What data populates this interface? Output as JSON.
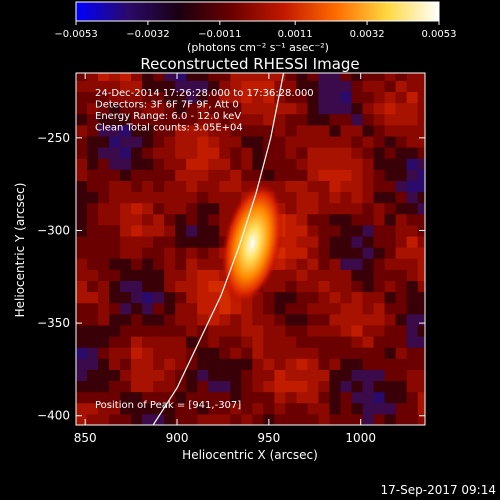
{
  "chart_data": {
    "type": "heatmap",
    "title": "Reconstructed RHESSI Image",
    "xlabel": "Heliocentric X (arcsec)",
    "ylabel": "Heliocentric Y (arcsec)",
    "xlim": [
      845,
      1035
    ],
    "ylim": [
      -405,
      -215
    ],
    "x_ticks": [
      850,
      900,
      950,
      1000
    ],
    "x_tick_labels": [
      "850",
      "900",
      "950",
      "1000"
    ],
    "y_ticks": [
      -250,
      -300,
      -350,
      -400
    ],
    "y_tick_labels": [
      "−250",
      "−300",
      "−350",
      "−400"
    ],
    "colorbar": {
      "range": [
        -0.0053,
        0.0053
      ],
      "ticks": [
        -0.0053,
        -0.0032,
        -0.0011,
        0.0011,
        0.0032,
        0.0053
      ],
      "tick_labels": [
        "−0.0053",
        "−0.0032",
        "−0.0011",
        "0.0011",
        "0.0032",
        "0.0053"
      ],
      "unit_label": "(photons cm⁻² s⁻¹ asec⁻²)",
      "colors": [
        "#0000ff",
        "#2a0a6a",
        "#1a0010",
        "#6a0000",
        "#c21800",
        "#ff6a00",
        "#ffd840",
        "#ffffff"
      ]
    },
    "annotations": [
      "24-Dec-2014 17:26:28.000 to 17:36:28.000",
      "Detectors: 3F 6F 7F 9F, Att 0",
      "Energy Range: 6.0 - 12.0 keV",
      "Clean      Total counts: 3.05E+04"
    ],
    "peak_label": "Position of Peak = [941,-307]",
    "peak": {
      "x": 941,
      "y": -307,
      "value": 0.0053
    },
    "limb_curve": [
      [
        887,
        -405
      ],
      [
        900,
        -385
      ],
      [
        912,
        -360
      ],
      [
        924,
        -335
      ],
      [
        934,
        -308
      ],
      [
        943,
        -280
      ],
      [
        951,
        -250
      ],
      [
        958,
        -215
      ]
    ],
    "grid": false
  },
  "footer": {
    "timestamp": "17-Sep-2017 09:14"
  }
}
